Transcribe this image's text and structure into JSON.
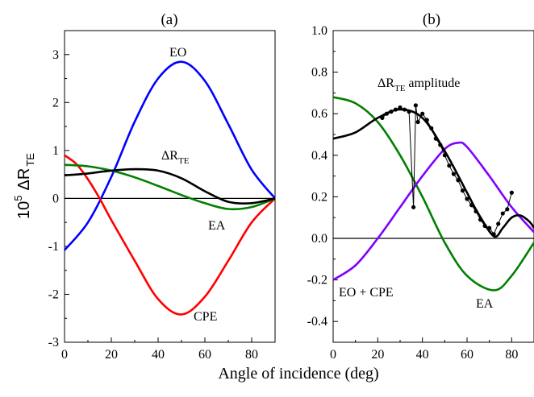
{
  "figure": {
    "shared_xlabel": "Angle of incidence (deg)",
    "ylabel_a": {
      "factor": "10",
      "exponent": "5",
      "symbol": "ΔR",
      "subscript": "TE"
    }
  },
  "chart_data": [
    {
      "id": "a",
      "type": "line",
      "title": "(a)",
      "xlabel": "",
      "ylabel": "10^5 ΔR_TE",
      "xlim": [
        0,
        90
      ],
      "ylim": [
        -3,
        3.5
      ],
      "xticks": [
        0,
        20,
        40,
        60,
        80
      ],
      "xtick_labels": [
        "0",
        "20",
        "40",
        "60",
        "80"
      ],
      "yticks": [
        -3,
        -2,
        -1,
        0,
        1,
        2,
        3
      ],
      "ytick_labels": [
        "-3",
        "-2",
        "-1",
        "0",
        "1",
        "2",
        "3"
      ],
      "grid": false,
      "zero_line": true,
      "series": [
        {
          "name": "EO",
          "color": "#0000ff",
          "x": [
            0,
            10,
            20,
            30,
            40,
            50,
            60,
            70,
            80,
            90
          ],
          "y": [
            -1.08,
            -0.5,
            0.45,
            1.6,
            2.5,
            2.85,
            2.45,
            1.55,
            0.6,
            0.0
          ]
        },
        {
          "name": "CPE",
          "color": "#ff0000",
          "x": [
            0,
            5,
            10,
            15,
            20,
            30,
            40,
            50,
            60,
            70,
            80,
            90
          ],
          "y": [
            0.9,
            0.72,
            0.4,
            0.0,
            -0.45,
            -1.3,
            -2.1,
            -2.42,
            -2.05,
            -1.3,
            -0.5,
            0.0
          ]
        },
        {
          "name": "EA",
          "color": "#008000",
          "x": [
            0,
            10,
            20,
            30,
            40,
            50,
            60,
            70,
            80,
            90
          ],
          "y": [
            0.7,
            0.67,
            0.58,
            0.44,
            0.26,
            0.07,
            -0.1,
            -0.22,
            -0.18,
            0.0
          ]
        },
        {
          "name": "ΔR_TE",
          "color": "#000000",
          "x": [
            0,
            10,
            20,
            30,
            40,
            50,
            60,
            70,
            80,
            90
          ],
          "y": [
            0.48,
            0.52,
            0.58,
            0.61,
            0.58,
            0.42,
            0.15,
            -0.07,
            -0.1,
            0.0
          ]
        }
      ],
      "annotations": [
        {
          "text": "EO",
          "series": "EO"
        },
        {
          "text": "ΔR",
          "sub": "TE",
          "series": "ΔR_TE"
        },
        {
          "text": "EA",
          "series": "EA"
        },
        {
          "text": "CPE",
          "series": "CPE"
        }
      ]
    },
    {
      "id": "b",
      "type": "line",
      "title": "(b)",
      "xlabel": "",
      "ylabel": "",
      "xlim": [
        0,
        90
      ],
      "ylim": [
        -0.5,
        1.0
      ],
      "xticks": [
        0,
        20,
        40,
        60,
        80
      ],
      "xtick_labels": [
        "0",
        "20",
        "40",
        "60",
        "80"
      ],
      "yticks": [
        -0.4,
        -0.2,
        0.0,
        0.2,
        0.4,
        0.6,
        0.8,
        1.0
      ],
      "ytick_labels": [
        "-0.4",
        "-0.2",
        "0.0",
        "0.2",
        "0.4",
        "0.6",
        "0.8",
        "1.0"
      ],
      "grid": false,
      "zero_line": true,
      "series": [
        {
          "name": "EA",
          "color": "#008000",
          "x": [
            0,
            10,
            20,
            30,
            40,
            50,
            60,
            72,
            80,
            90
          ],
          "y": [
            0.68,
            0.65,
            0.56,
            0.4,
            0.2,
            -0.02,
            -0.18,
            -0.25,
            -0.18,
            -0.02
          ]
        },
        {
          "name": "EO + CPE",
          "color": "#8000ff",
          "x": [
            0,
            10,
            20,
            30,
            40,
            50,
            56,
            60,
            70,
            80,
            90
          ],
          "y": [
            -0.2,
            -0.13,
            0.0,
            0.15,
            0.3,
            0.43,
            0.46,
            0.44,
            0.3,
            0.15,
            0.03
          ]
        },
        {
          "name": "ΔR_TE amplitude",
          "color": "#000000",
          "x": [
            0,
            10,
            20,
            30,
            40,
            50,
            60,
            65,
            72,
            76,
            80,
            84,
            88,
            90
          ],
          "y": [
            0.48,
            0.51,
            0.58,
            0.62,
            0.58,
            0.42,
            0.22,
            0.12,
            0.01,
            0.05,
            0.1,
            0.11,
            0.08,
            0.05
          ]
        },
        {
          "name": "measured",
          "color": "#000000",
          "marker": "dot",
          "x": [
            22,
            24,
            26,
            28,
            30,
            32,
            34,
            36,
            37,
            38,
            40,
            42,
            44,
            46,
            48,
            50,
            52,
            54,
            56,
            58,
            60,
            62,
            64,
            66,
            68,
            70,
            72,
            74,
            76,
            78,
            80
          ],
          "y": [
            0.58,
            0.6,
            0.61,
            0.62,
            0.63,
            0.62,
            0.61,
            0.15,
            0.64,
            0.56,
            0.6,
            0.57,
            0.53,
            0.48,
            0.45,
            0.4,
            0.35,
            0.31,
            0.28,
            0.23,
            0.19,
            0.16,
            0.13,
            0.09,
            0.06,
            0.05,
            0.02,
            0.07,
            0.12,
            0.14,
            0.22
          ]
        }
      ],
      "annotations": [
        {
          "text": "ΔR",
          "sub": "TE",
          "after": " amplitude",
          "series": "ΔR_TE amplitude"
        },
        {
          "text": "EO + CPE",
          "series": "EO + CPE"
        },
        {
          "text": "EA",
          "series": "EA"
        }
      ]
    }
  ]
}
